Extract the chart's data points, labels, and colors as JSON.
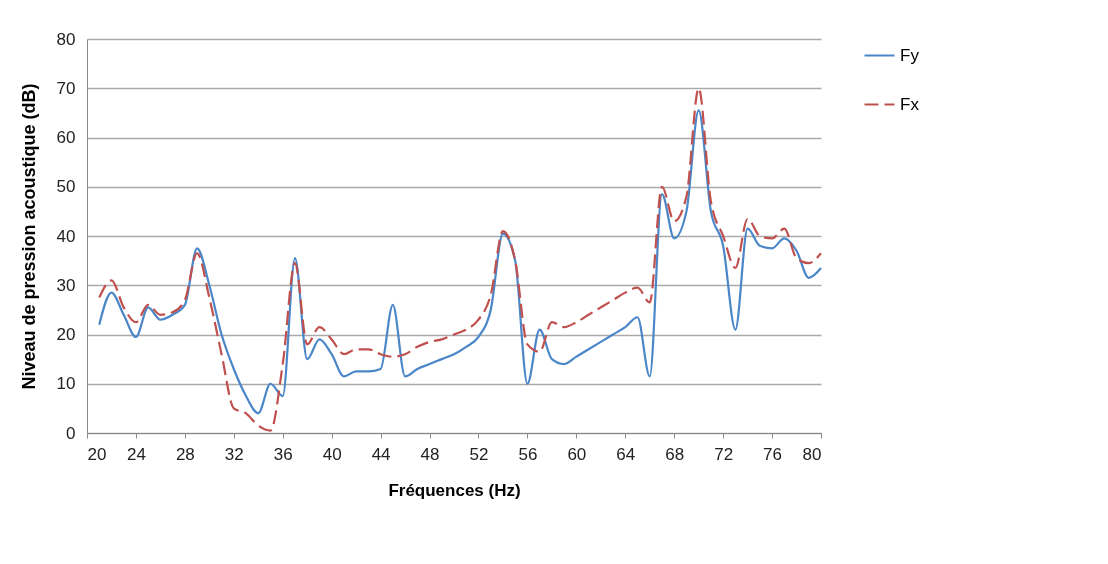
{
  "chart_data": {
    "type": "line",
    "xlabel": "Fréquences (Hz)",
    "ylabel": "Niveau de pression acoustique (dB)",
    "x": [
      21,
      22,
      23,
      24,
      25,
      26,
      27,
      28,
      29,
      30,
      31,
      32,
      33,
      34,
      35,
      36,
      37,
      38,
      39,
      40,
      41,
      42,
      43,
      44,
      45,
      46,
      47,
      48,
      49,
      50,
      51,
      52,
      53,
      54,
      55,
      56,
      57,
      58,
      59,
      60,
      61,
      62,
      63,
      64,
      65,
      66,
      67,
      68,
      69,
      70,
      71,
      72,
      73,
      74,
      75,
      76,
      77,
      78,
      79,
      80
    ],
    "series": [
      {
        "name": "Fy",
        "color": "#4a86c8",
        "line_style": "solid",
        "values": [
          22,
          28.5,
          24,
          19.5,
          25.5,
          23,
          24,
          26,
          37.5,
          30,
          20,
          13,
          7.5,
          4,
          10,
          7.5,
          35.5,
          15,
          19,
          16,
          11.5,
          12.5,
          12.5,
          13,
          26,
          11.5,
          13,
          14,
          15,
          16,
          17.5,
          19.5,
          25,
          40.5,
          35,
          10,
          21,
          15,
          14,
          15.5,
          17,
          18.5,
          20,
          21.5,
          23.5,
          11.5,
          48.5,
          39.5,
          45,
          65.5,
          45,
          38,
          21,
          41.5,
          38,
          37.5,
          39.5,
          37,
          31.5,
          33.5
        ]
      },
      {
        "name": "Fx",
        "color": "#c0504d",
        "line_style": "dashed",
        "values": [
          27.5,
          31,
          25.5,
          22.5,
          26,
          24,
          24.5,
          27,
          36.5,
          27.5,
          16,
          5,
          4,
          1.5,
          0.5,
          14,
          34.5,
          18,
          21.5,
          19,
          16,
          17,
          17,
          16,
          15.5,
          16,
          17.5,
          18.5,
          19,
          20,
          21,
          23,
          28,
          41,
          35,
          18,
          16.5,
          22.5,
          21.5,
          22.5,
          24,
          25.5,
          27,
          28.5,
          29.5,
          26.5,
          50,
          43,
          48,
          70,
          47,
          40,
          33.5,
          43.5,
          40,
          39.5,
          41.5,
          35.5,
          34.5,
          36.5
        ]
      }
    ],
    "xlim": [
      20,
      80
    ],
    "xticks": [
      20,
      24,
      28,
      32,
      36,
      40,
      44,
      48,
      52,
      56,
      60,
      64,
      68,
      72,
      76,
      80
    ],
    "ylim": [
      0,
      80
    ],
    "yticks": [
      0,
      10,
      20,
      30,
      40,
      50,
      60,
      70,
      80
    ],
    "grid": "y",
    "legend": "right",
    "marker": "none"
  }
}
